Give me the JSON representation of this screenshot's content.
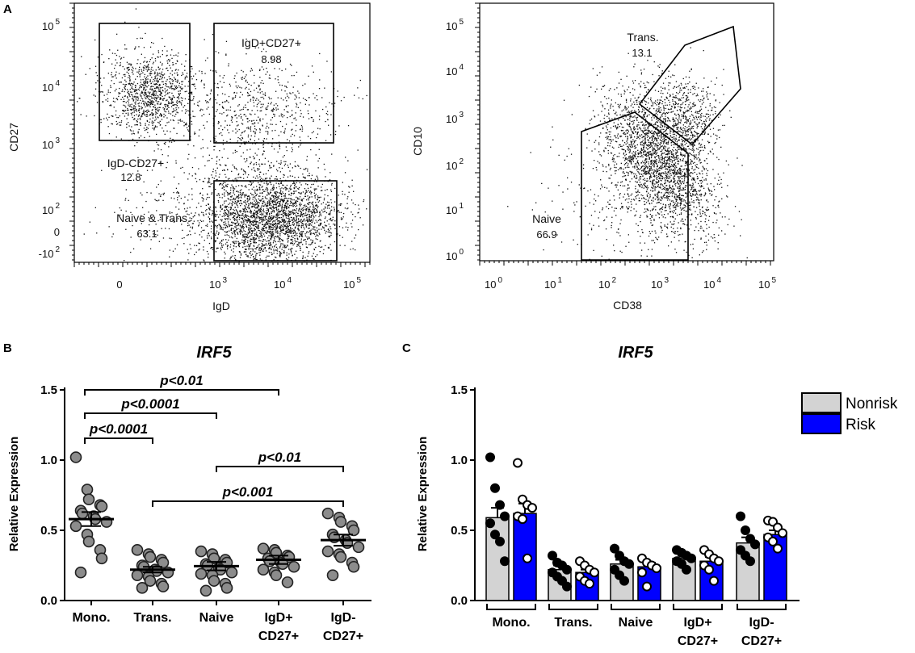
{
  "panel_letters": {
    "a": "A",
    "b": "B",
    "c": "C"
  },
  "chart_data": [
    {
      "type": "scatter",
      "id": "A1",
      "title": "",
      "xlabel": "IgD",
      "ylabel": "CD27",
      "x_ticks": [
        {
          "base": "0",
          "sup": ""
        },
        {
          "base": "10",
          "sup": "3"
        },
        {
          "base": "10",
          "sup": "4"
        },
        {
          "base": "10",
          "sup": "5"
        }
      ],
      "y_ticks": [
        {
          "base": "10",
          "sup": "5"
        },
        {
          "base": "10",
          "sup": "4"
        },
        {
          "base": "10",
          "sup": "3"
        },
        {
          "base": "10",
          "sup": "2"
        },
        {
          "base": "0",
          "sup": ""
        },
        {
          "base": "-10",
          "sup": "2"
        }
      ],
      "gates": [
        {
          "name": "IgD-CD27+",
          "value": "12.8"
        },
        {
          "name": "IgD+CD27+",
          "value": "8.98"
        },
        {
          "name": "Naive & Trans.",
          "value": "63.1"
        }
      ]
    },
    {
      "type": "scatter",
      "id": "A2",
      "title": "",
      "xlabel": "CD38",
      "ylabel": "CD10",
      "x_ticks": [
        {
          "base": "10",
          "sup": "0"
        },
        {
          "base": "10",
          "sup": "1"
        },
        {
          "base": "10",
          "sup": "2"
        },
        {
          "base": "10",
          "sup": "3"
        },
        {
          "base": "10",
          "sup": "4"
        },
        {
          "base": "10",
          "sup": "5"
        }
      ],
      "y_ticks": [
        {
          "base": "10",
          "sup": "5"
        },
        {
          "base": "10",
          "sup": "4"
        },
        {
          "base": "10",
          "sup": "3"
        },
        {
          "base": "10",
          "sup": "2"
        },
        {
          "base": "10",
          "sup": "1"
        },
        {
          "base": "10",
          "sup": "0"
        }
      ],
      "gates": [
        {
          "name": "Trans.",
          "value": "13.1"
        },
        {
          "name": "Naive",
          "value": "66.9"
        }
      ]
    },
    {
      "type": "scatter",
      "id": "B",
      "title": "IRF5",
      "xlabel": "",
      "ylabel": "Relative Expression",
      "ylim": [
        0,
        1.5
      ],
      "y_ticks": [
        "0.0",
        "0.5",
        "1.0",
        "1.5"
      ],
      "categories": [
        {
          "line1": "Mono.",
          "line2": ""
        },
        {
          "line1": "Trans.",
          "line2": ""
        },
        {
          "line1": "Naive",
          "line2": ""
        },
        {
          "line1": "IgD+",
          "line2": "CD27+"
        },
        {
          "line1": "IgD-",
          "line2": "CD27+"
        }
      ],
      "means": [
        0.58,
        0.22,
        0.245,
        0.29,
        0.43
      ],
      "sems": [
        0.05,
        0.02,
        0.03,
        0.03,
        0.04
      ],
      "points": [
        [
          1.02,
          0.79,
          0.72,
          0.68,
          0.67,
          0.64,
          0.62,
          0.6,
          0.58,
          0.56,
          0.53,
          0.47,
          0.42,
          0.36,
          0.3,
          0.2
        ],
        [
          0.36,
          0.33,
          0.31,
          0.29,
          0.27,
          0.25,
          0.24,
          0.22,
          0.21,
          0.2,
          0.18,
          0.17,
          0.14,
          0.12,
          0.1,
          0.09
        ],
        [
          0.35,
          0.33,
          0.3,
          0.29,
          0.27,
          0.26,
          0.25,
          0.23,
          0.22,
          0.2,
          0.19,
          0.18,
          0.14,
          0.12,
          0.09,
          0.07
        ],
        [
          0.37,
          0.36,
          0.34,
          0.32,
          0.31,
          0.3,
          0.28,
          0.27,
          0.26,
          0.24,
          0.22,
          0.2,
          0.18,
          0.13
        ],
        [
          0.62,
          0.59,
          0.56,
          0.53,
          0.5,
          0.47,
          0.45,
          0.43,
          0.41,
          0.38,
          0.35,
          0.33,
          0.31,
          0.27,
          0.24,
          0.18
        ]
      ],
      "comparisons": [
        {
          "from": 0,
          "to": 3,
          "label": "p<0.01"
        },
        {
          "from": 0,
          "to": 2,
          "label": "p<0.0001"
        },
        {
          "from": 0,
          "to": 1,
          "label": "p<0.0001"
        },
        {
          "from": 2,
          "to": 4,
          "label": "p<0.01"
        },
        {
          "from": 1,
          "to": 4,
          "label": "p<0.001"
        }
      ]
    },
    {
      "type": "bar",
      "id": "C",
      "title": "IRF5",
      "xlabel": "",
      "ylabel": "Relative Expression",
      "ylim": [
        0,
        1.5
      ],
      "y_ticks": [
        "0.0",
        "0.5",
        "1.0",
        "1.5"
      ],
      "categories": [
        {
          "line1": "Mono.",
          "line2": ""
        },
        {
          "line1": "Trans.",
          "line2": ""
        },
        {
          "line1": "Naive",
          "line2": ""
        },
        {
          "line1": "IgD+",
          "line2": "CD27+"
        },
        {
          "line1": "IgD-",
          "line2": "CD27+"
        }
      ],
      "legend_position": "top-right",
      "series": [
        {
          "name": "Nonrisk",
          "color": "#d3d3d3",
          "marker": "filled",
          "values": [
            0.59,
            0.22,
            0.26,
            0.3,
            0.41
          ],
          "sems": [
            0.07,
            0.03,
            0.03,
            0.02,
            0.04
          ],
          "points": [
            [
              1.02,
              0.8,
              0.68,
              0.6,
              0.55,
              0.47,
              0.42,
              0.28
            ],
            [
              0.32,
              0.27,
              0.25,
              0.22,
              0.2,
              0.17,
              0.14,
              0.1
            ],
            [
              0.37,
              0.32,
              0.28,
              0.26,
              0.22,
              0.18,
              0.14
            ],
            [
              0.36,
              0.34,
              0.32,
              0.3,
              0.28,
              0.26,
              0.22
            ],
            [
              0.6,
              0.5,
              0.44,
              0.4,
              0.36,
              0.32,
              0.28
            ]
          ]
        },
        {
          "name": "Risk",
          "color": "#0000ff",
          "marker": "open",
          "values": [
            0.62,
            0.2,
            0.24,
            0.28,
            0.47
          ],
          "sems": [
            0.07,
            0.02,
            0.03,
            0.03,
            0.03
          ],
          "points": [
            [
              0.98,
              0.72,
              0.68,
              0.66,
              0.6,
              0.58,
              0.3
            ],
            [
              0.28,
              0.25,
              0.22,
              0.2,
              0.17,
              0.14,
              0.12
            ],
            [
              0.3,
              0.27,
              0.25,
              0.23,
              0.2,
              0.1
            ],
            [
              0.36,
              0.33,
              0.3,
              0.28,
              0.25,
              0.22,
              0.14
            ],
            [
              0.57,
              0.56,
              0.52,
              0.48,
              0.45,
              0.42,
              0.37
            ]
          ]
        }
      ]
    }
  ]
}
